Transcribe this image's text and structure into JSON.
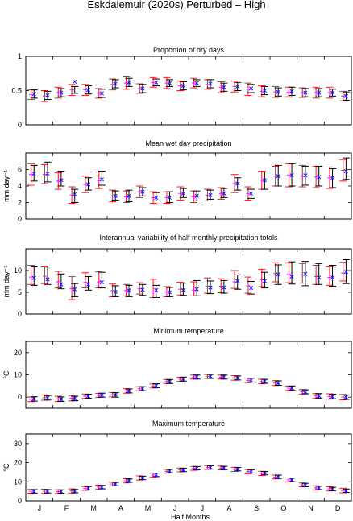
{
  "figure": {
    "title": "Eskdalemuir (2020s) Perturbed – High",
    "xlabel": "Half Months",
    "month_labels": [
      "J",
      "F",
      "M",
      "A",
      "M",
      "J",
      "J",
      "A",
      "S",
      "O",
      "N",
      "D"
    ]
  },
  "colors": {
    "red": "#e8202a",
    "black": "#000000",
    "blue": "#1a1aff",
    "magenta": "#e020e0"
  },
  "chart_data": [
    {
      "type": "errorbar",
      "title": "Proportion of dry days",
      "ylabel": "",
      "ylim": [
        0,
        1
      ],
      "yticks": [
        0,
        0.5,
        1
      ],
      "x": [
        1,
        2,
        3,
        4,
        5,
        6,
        7,
        8,
        9,
        10,
        11,
        12,
        13,
        14,
        15,
        16,
        17,
        18,
        19,
        20,
        21,
        22,
        23,
        24
      ],
      "series": [
        {
          "marker": "magenta-plus",
          "values": [
            0.44,
            0.42,
            0.47,
            0.51,
            0.51,
            0.46,
            0.59,
            0.61,
            0.53,
            0.62,
            0.61,
            0.57,
            0.61,
            0.59,
            0.55,
            0.56,
            0.52,
            0.49,
            0.48,
            0.48,
            0.47,
            0.47,
            0.47,
            0.42
          ],
          "lower": [
            0.37,
            0.34,
            0.39,
            0.43,
            0.43,
            0.39,
            0.51,
            0.52,
            0.46,
            0.55,
            0.53,
            0.5,
            0.54,
            0.52,
            0.47,
            0.48,
            0.43,
            0.41,
            0.4,
            0.41,
            0.4,
            0.39,
            0.39,
            0.35
          ],
          "upper": [
            0.51,
            0.5,
            0.55,
            0.59,
            0.59,
            0.53,
            0.67,
            0.7,
            0.6,
            0.69,
            0.69,
            0.64,
            0.68,
            0.66,
            0.63,
            0.64,
            0.61,
            0.57,
            0.56,
            0.55,
            0.54,
            0.55,
            0.55,
            0.49
          ]
        },
        {
          "marker": "blue-cross",
          "values": [
            0.45,
            0.43,
            0.47,
            0.63,
            0.51,
            0.46,
            0.6,
            0.62,
            0.53,
            0.62,
            0.61,
            0.57,
            0.61,
            0.6,
            0.55,
            0.56,
            0.53,
            0.5,
            0.48,
            0.49,
            0.47,
            0.47,
            0.47,
            0.42
          ],
          "lower": [
            0.39,
            0.37,
            0.41,
            0.46,
            0.45,
            0.4,
            0.54,
            0.56,
            0.47,
            0.57,
            0.56,
            0.51,
            0.56,
            0.54,
            0.49,
            0.5,
            0.47,
            0.44,
            0.42,
            0.43,
            0.41,
            0.41,
            0.42,
            0.36
          ],
          "upper": [
            0.51,
            0.49,
            0.53,
            0.56,
            0.57,
            0.52,
            0.66,
            0.68,
            0.59,
            0.67,
            0.66,
            0.63,
            0.66,
            0.66,
            0.61,
            0.62,
            0.59,
            0.56,
            0.54,
            0.55,
            0.53,
            0.53,
            0.52,
            0.48
          ]
        }
      ]
    },
    {
      "type": "errorbar",
      "title": "Mean wet day precipitation",
      "ylabel": "mm day⁻¹",
      "ylim": [
        0,
        8
      ],
      "yticks": [
        0,
        2,
        4,
        6
      ],
      "x": [
        1,
        2,
        3,
        4,
        5,
        6,
        7,
        8,
        9,
        10,
        11,
        12,
        13,
        14,
        15,
        16,
        17,
        18,
        19,
        20,
        21,
        22,
        23,
        24
      ],
      "series": [
        {
          "marker": "magenta-plus",
          "values": [
            5.4,
            5.4,
            4.6,
            2.9,
            4.2,
            4.7,
            2.8,
            2.7,
            3.3,
            2.6,
            2.6,
            3.1,
            2.7,
            2.9,
            3.1,
            4.3,
            3.1,
            4.7,
            5.2,
            5.3,
            5.2,
            5.1,
            5.0,
            5.9
          ],
          "lower": [
            4.1,
            4.3,
            3.6,
            1.9,
            3.2,
            3.7,
            2.1,
            2.0,
            2.6,
            1.9,
            1.9,
            2.3,
            2.0,
            2.2,
            2.4,
            3.2,
            2.3,
            3.6,
            4.0,
            3.9,
            3.9,
            3.8,
            3.7,
            4.6
          ],
          "upper": [
            6.7,
            6.6,
            5.6,
            3.9,
            5.2,
            5.7,
            3.5,
            3.4,
            4.0,
            3.3,
            3.3,
            3.9,
            3.4,
            3.6,
            3.8,
            5.4,
            3.9,
            5.8,
            6.4,
            6.7,
            6.5,
            6.4,
            6.3,
            7.2
          ]
        },
        {
          "marker": "blue-cross",
          "values": [
            5.5,
            5.5,
            4.7,
            3.0,
            4.2,
            4.8,
            2.8,
            2.8,
            3.3,
            2.6,
            2.6,
            3.1,
            2.8,
            2.9,
            3.1,
            4.3,
            3.1,
            4.7,
            5.2,
            5.3,
            5.3,
            5.1,
            5.0,
            5.8
          ],
          "lower": [
            4.6,
            4.5,
            4.0,
            2.0,
            3.5,
            4.1,
            2.3,
            2.1,
            2.8,
            2.2,
            2.0,
            2.6,
            2.2,
            2.4,
            2.6,
            3.5,
            2.5,
            3.6,
            4.0,
            4.0,
            4.1,
            4.0,
            3.8,
            4.8
          ],
          "upper": [
            6.5,
            6.9,
            5.8,
            3.6,
            5.0,
            5.8,
            3.4,
            3.5,
            3.8,
            3.2,
            3.3,
            3.7,
            3.4,
            3.5,
            3.7,
            5.0,
            3.6,
            5.7,
            6.5,
            6.7,
            6.4,
            6.4,
            6.1,
            7.4
          ]
        }
      ]
    },
    {
      "type": "errorbar",
      "title": "Interannual variability of half monthly precipitation totals",
      "ylabel": "mm day⁻¹",
      "ylim": [
        0,
        15
      ],
      "yticks": [
        0,
        5,
        10
      ],
      "x": [
        1,
        2,
        3,
        4,
        5,
        6,
        7,
        8,
        9,
        10,
        11,
        12,
        13,
        14,
        15,
        16,
        17,
        18,
        19,
        20,
        21,
        22,
        23,
        24
      ],
      "series": [
        {
          "marker": "magenta-plus",
          "values": [
            8.5,
            8.7,
            7.4,
            5.8,
            7.3,
            7.4,
            5.4,
            5.4,
            5.8,
            5.1,
            5.1,
            5.7,
            5.5,
            6.4,
            6.4,
            7.4,
            6.5,
            7.9,
            9.3,
            9.1,
            9.0,
            8.6,
            8.4,
            9.4
          ],
          "lower": [
            6.8,
            7.0,
            6.0,
            3.3,
            6.0,
            6.0,
            4.0,
            4.2,
            4.6,
            3.8,
            4.0,
            4.4,
            4.2,
            4.8,
            4.9,
            5.9,
            4.8,
            6.3,
            7.4,
            7.2,
            7.1,
            6.8,
            6.6,
            7.6
          ],
          "upper": [
            11.2,
            11.0,
            9.8,
            8.6,
            9.5,
            9.7,
            6.9,
            6.8,
            7.2,
            8.0,
            6.3,
            7.3,
            7.4,
            8.3,
            8.1,
            10.0,
            8.5,
            10.3,
            11.8,
            11.8,
            11.6,
            11.2,
            11.0,
            11.9
          ]
        },
        {
          "marker": "blue-cross",
          "values": [
            8.3,
            8.0,
            6.8,
            5.7,
            6.8,
            7.3,
            5.1,
            5.4,
            5.6,
            5.5,
            5.0,
            5.5,
            5.7,
            6.1,
            6.1,
            7.6,
            6.0,
            7.6,
            9.1,
            8.6,
            9.2,
            8.4,
            8.4,
            9.7
          ],
          "lower": [
            6.6,
            6.8,
            5.8,
            4.0,
            5.5,
            6.0,
            4.0,
            4.0,
            4.3,
            3.8,
            4.0,
            4.3,
            4.2,
            4.7,
            4.8,
            5.7,
            4.6,
            6.0,
            6.8,
            6.9,
            6.5,
            6.8,
            6.4,
            7.0
          ],
          "upper": [
            11.0,
            10.8,
            9.2,
            7.0,
            8.6,
            9.6,
            6.5,
            6.6,
            6.8,
            6.6,
            6.1,
            7.1,
            7.7,
            7.6,
            7.7,
            9.0,
            7.5,
            9.6,
            11.3,
            12.0,
            12.1,
            11.6,
            11.2,
            12.5
          ]
        }
      ]
    },
    {
      "type": "errorbar",
      "title": "Minimum temperature",
      "ylabel": "°C",
      "ylim": [
        -5,
        25
      ],
      "yticks": [
        0,
        10,
        20
      ],
      "x": [
        1,
        2,
        3,
        4,
        5,
        6,
        7,
        8,
        9,
        10,
        11,
        12,
        13,
        14,
        15,
        16,
        17,
        18,
        19,
        20,
        21,
        22,
        23,
        24
      ],
      "series": [
        {
          "marker": "magenta-plus",
          "values": [
            -1.0,
            -0.2,
            -0.8,
            -0.5,
            0.4,
            0.8,
            1.1,
            2.8,
            3.8,
            5.0,
            7.0,
            8.0,
            9.0,
            9.3,
            9.0,
            8.6,
            7.5,
            7.0,
            6.3,
            4.0,
            2.4,
            0.5,
            0.3,
            0.0
          ],
          "lower": [
            -2.0,
            -1.4,
            -2.0,
            -1.7,
            -0.6,
            -0.1,
            0.1,
            1.8,
            2.9,
            4.1,
            6.1,
            7.1,
            8.1,
            8.4,
            8.1,
            7.6,
            6.5,
            6.0,
            5.2,
            3.0,
            1.4,
            -0.6,
            -0.9,
            -1.2
          ],
          "upper": [
            0.0,
            1.0,
            0.4,
            0.7,
            1.4,
            1.7,
            2.1,
            3.8,
            4.7,
            5.9,
            7.9,
            8.9,
            9.9,
            10.2,
            9.9,
            9.6,
            8.5,
            8.0,
            7.4,
            5.0,
            3.4,
            1.6,
            1.5,
            1.2
          ]
        },
        {
          "marker": "blue-cross",
          "values": [
            -0.8,
            -0.3,
            -0.9,
            -0.6,
            0.4,
            0.9,
            1.0,
            2.8,
            3.8,
            5.1,
            7.0,
            8.1,
            9.0,
            9.3,
            9.0,
            8.6,
            7.6,
            7.1,
            6.3,
            4.1,
            2.4,
            0.6,
            0.3,
            0.0
          ],
          "lower": [
            -1.8,
            -1.3,
            -1.9,
            -1.6,
            -0.5,
            0.0,
            0.0,
            1.9,
            2.9,
            4.2,
            6.1,
            7.2,
            8.1,
            8.4,
            8.1,
            7.7,
            6.7,
            6.2,
            5.3,
            3.2,
            1.5,
            -0.4,
            -0.7,
            -1.0
          ],
          "upper": [
            0.2,
            0.7,
            0.1,
            0.4,
            1.3,
            1.8,
            2.0,
            3.7,
            4.7,
            6.0,
            7.9,
            9.0,
            9.9,
            10.2,
            9.9,
            9.5,
            8.5,
            8.0,
            7.3,
            5.0,
            3.3,
            1.6,
            1.3,
            1.0
          ]
        }
      ]
    },
    {
      "type": "errorbar",
      "title": "Maximum temperature",
      "ylabel": "°C",
      "ylim": [
        0,
        35
      ],
      "yticks": [
        0,
        10,
        20,
        30
      ],
      "x": [
        1,
        2,
        3,
        4,
        5,
        6,
        7,
        8,
        9,
        10,
        11,
        12,
        13,
        14,
        15,
        16,
        17,
        18,
        19,
        20,
        21,
        22,
        23,
        24
      ],
      "series": [
        {
          "marker": "magenta-plus",
          "values": [
            5.0,
            5.0,
            4.8,
            5.2,
            6.5,
            7.2,
            8.8,
            10.5,
            12.0,
            13.5,
            15.5,
            16.2,
            17.0,
            17.5,
            17.2,
            16.5,
            15.3,
            14.4,
            12.5,
            11.0,
            8.4,
            6.8,
            6.3,
            5.4
          ],
          "lower": [
            4.0,
            3.9,
            3.8,
            4.1,
            5.5,
            6.2,
            7.8,
            9.4,
            10.9,
            12.5,
            14.5,
            15.2,
            16.0,
            16.5,
            16.2,
            15.4,
            14.2,
            13.3,
            11.5,
            10.0,
            7.4,
            5.7,
            5.2,
            4.2
          ],
          "upper": [
            6.0,
            6.1,
            5.8,
            6.3,
            7.5,
            8.2,
            9.8,
            11.6,
            13.1,
            14.5,
            16.5,
            17.2,
            18.0,
            18.5,
            18.2,
            17.6,
            16.4,
            15.5,
            13.5,
            12.0,
            9.4,
            7.9,
            7.4,
            6.6
          ]
        },
        {
          "marker": "blue-cross",
          "values": [
            5.0,
            5.0,
            4.9,
            5.1,
            6.6,
            7.2,
            8.8,
            10.6,
            12.0,
            13.6,
            15.6,
            16.2,
            17.1,
            17.5,
            17.2,
            16.6,
            15.4,
            14.5,
            12.6,
            11.0,
            8.3,
            6.8,
            6.2,
            5.3
          ],
          "lower": [
            4.1,
            4.1,
            4.0,
            4.2,
            5.7,
            6.3,
            7.9,
            9.7,
            11.1,
            12.7,
            14.7,
            15.3,
            16.2,
            16.6,
            16.3,
            15.7,
            14.5,
            13.6,
            11.7,
            10.1,
            7.4,
            5.9,
            5.3,
            4.4
          ],
          "upper": [
            5.9,
            5.9,
            5.8,
            6.0,
            7.5,
            8.1,
            9.7,
            11.5,
            12.9,
            14.5,
            16.5,
            17.1,
            18.0,
            18.4,
            18.1,
            17.5,
            16.3,
            15.4,
            13.5,
            11.9,
            9.2,
            7.7,
            7.1,
            6.2
          ]
        }
      ]
    }
  ]
}
